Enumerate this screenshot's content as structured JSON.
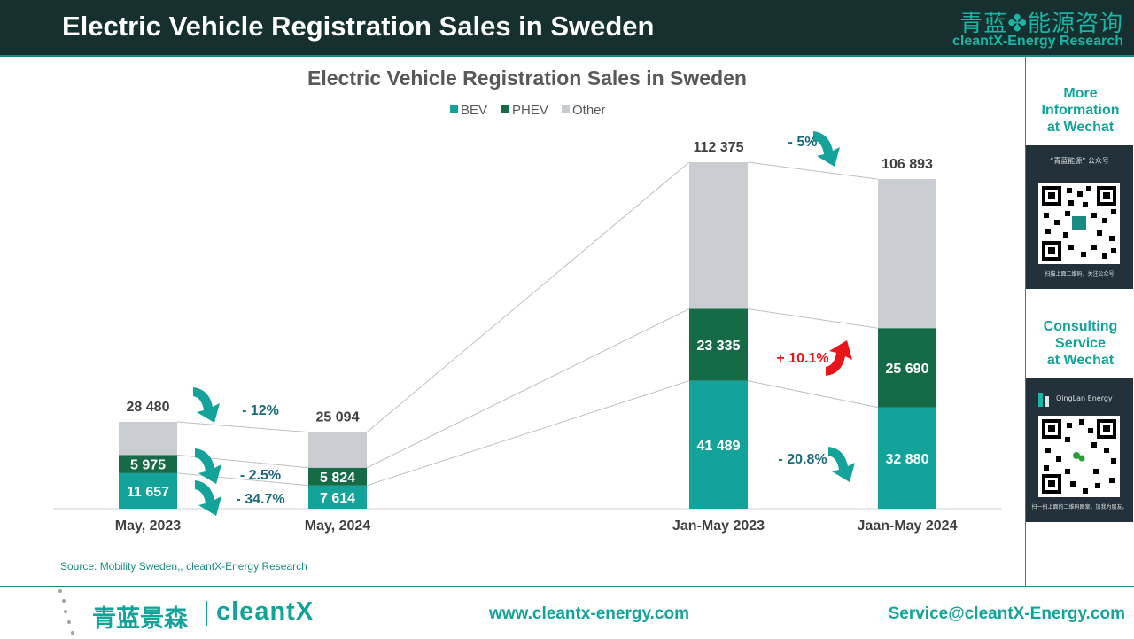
{
  "header": {
    "title": "Electric Vehicle Registration Sales in Sweden",
    "brand_cn": "青蓝✤能源咨询",
    "brand_en": "cleantX-Energy Research"
  },
  "sidebar": {
    "more_info": "More\nInformation\nat Wechat",
    "qr1_caption": "“青蓝能源” 公众号",
    "qr1_footer": "扫描上面二维码，关注公众号",
    "consulting": "Consulting\nService\nat Wechat",
    "qr2_caption": "QingLan Energy",
    "qr2_footer": "扫一扫上面的二维码图案，加我为朋友。"
  },
  "footer": {
    "logo_cn": "青蓝景森",
    "logo_en": "cleantX",
    "url": "www.cleantx-energy.com",
    "email": "Service@cleantX-Energy.com"
  },
  "chart_data": {
    "type": "bar",
    "stacked": true,
    "title": "Electric Vehicle Registration Sales in Sweden",
    "legend_position": "top-center",
    "categories": [
      "May, 2023",
      "May, 2024",
      "Jan-May 2023",
      "Jaan-May 2024"
    ],
    "totals": [
      28480,
      25094,
      112375,
      106893
    ],
    "total_labels": [
      "28 480",
      "25 094",
      "112 375",
      "106 893"
    ],
    "series": [
      {
        "name": "BEV",
        "color": "#13a39a",
        "values": [
          11657,
          7614,
          41489,
          32880
        ],
        "labels": [
          "11 657",
          "7 614",
          "41 489",
          "32 880"
        ]
      },
      {
        "name": "PHEV",
        "color": "#166b47",
        "values": [
          5975,
          5824,
          23335,
          25690
        ],
        "labels": [
          "5 975",
          "5 824",
          "23 335",
          "25 690"
        ]
      },
      {
        "name": "Other",
        "color": "#c9ccd1",
        "values": [
          10848,
          11656,
          47551,
          48323
        ]
      }
    ],
    "changes": [
      {
        "text": "- 12%",
        "direction": "down",
        "group": "monthly",
        "series": "Total"
      },
      {
        "text": "- 2.5%",
        "direction": "down",
        "group": "monthly",
        "series": "PHEV"
      },
      {
        "text": "- 34.7%",
        "direction": "down",
        "group": "monthly",
        "series": "BEV"
      },
      {
        "text": "- 5%",
        "direction": "down",
        "group": "ytd",
        "series": "Total"
      },
      {
        "text": "+ 10.1%",
        "direction": "up",
        "group": "ytd",
        "series": "PHEV"
      },
      {
        "text": "- 20.8%",
        "direction": "down",
        "group": "ytd",
        "series": "BEV"
      }
    ],
    "source": "Source: Mobility Sweden,, cleantX-Energy  Research"
  }
}
